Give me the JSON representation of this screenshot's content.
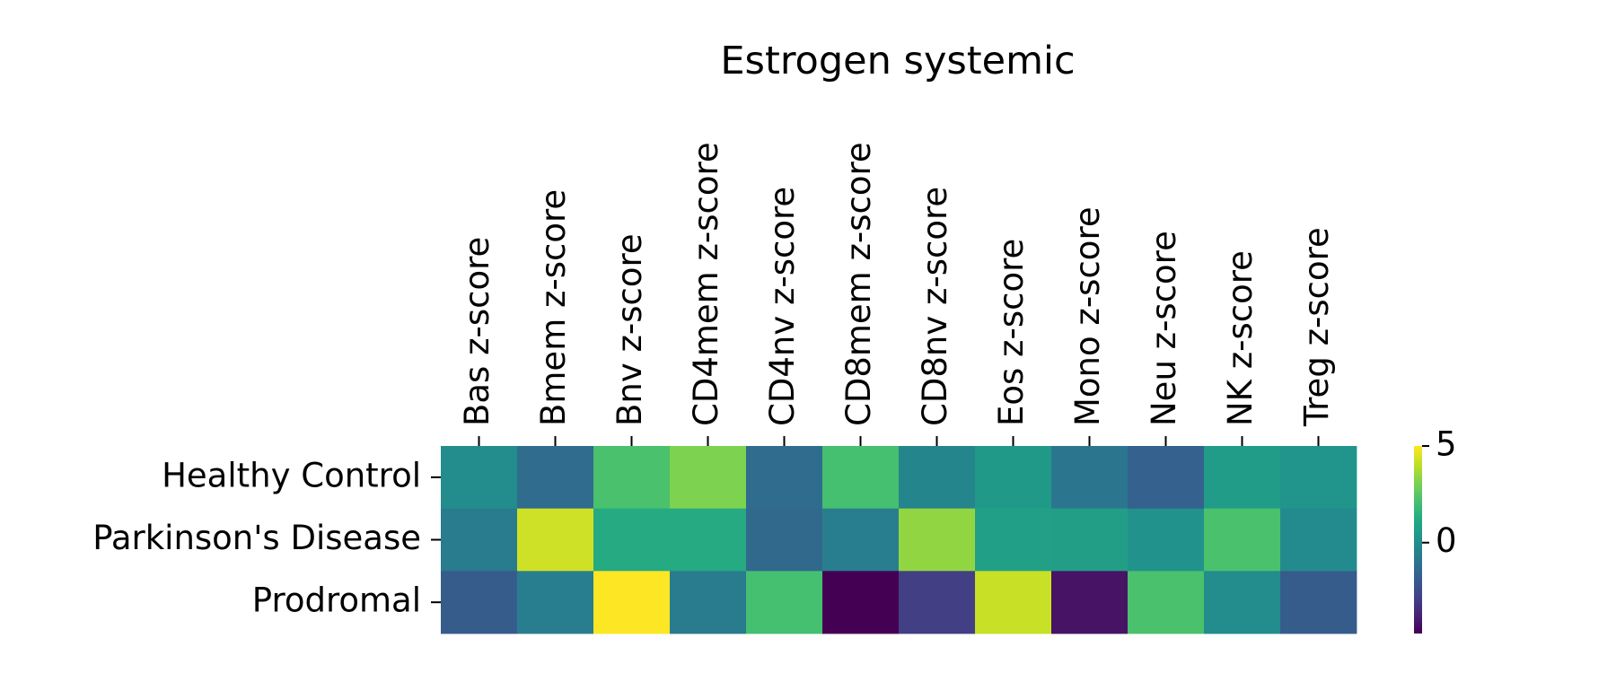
{
  "chart_data": {
    "type": "heatmap",
    "title": "Estrogen systemic",
    "xlabel": "",
    "ylabel": "",
    "columns": [
      "Bas z-score",
      "Bmem z-score",
      "Bnv z-score",
      "CD4mem z-score",
      "CD4nv z-score",
      "CD8mem z-score",
      "CD8nv z-score",
      "Eos z-score",
      "Mono z-score",
      "Neu z-score",
      "NK z-score",
      "Treg z-score"
    ],
    "rows": [
      "Healthy Control",
      "Parkinson's Disease",
      "Prodromal"
    ],
    "values": [
      [
        0.0,
        -1.3,
        2.2,
        3.1,
        -1.3,
        2.1,
        -0.3,
        0.5,
        -0.9,
        -1.7,
        0.6,
        0.3
      ],
      [
        -0.7,
        4.3,
        1.2,
        1.2,
        -1.4,
        -0.6,
        3.4,
        0.8,
        0.7,
        0.2,
        2.2,
        -0.1
      ],
      [
        -1.9,
        -0.6,
        5.0,
        -0.7,
        2.1,
        -4.7,
        -2.9,
        4.2,
        -4.2,
        2.2,
        0.0,
        -1.9
      ]
    ],
    "colormap": "viridis",
    "colorbar": {
      "range": [
        -4.7,
        5.0
      ],
      "ticks": [
        {
          "value": 5,
          "label": "5"
        },
        {
          "value": 0,
          "label": "0"
        }
      ],
      "placement": "right"
    },
    "grid": false,
    "legend": "none"
  }
}
